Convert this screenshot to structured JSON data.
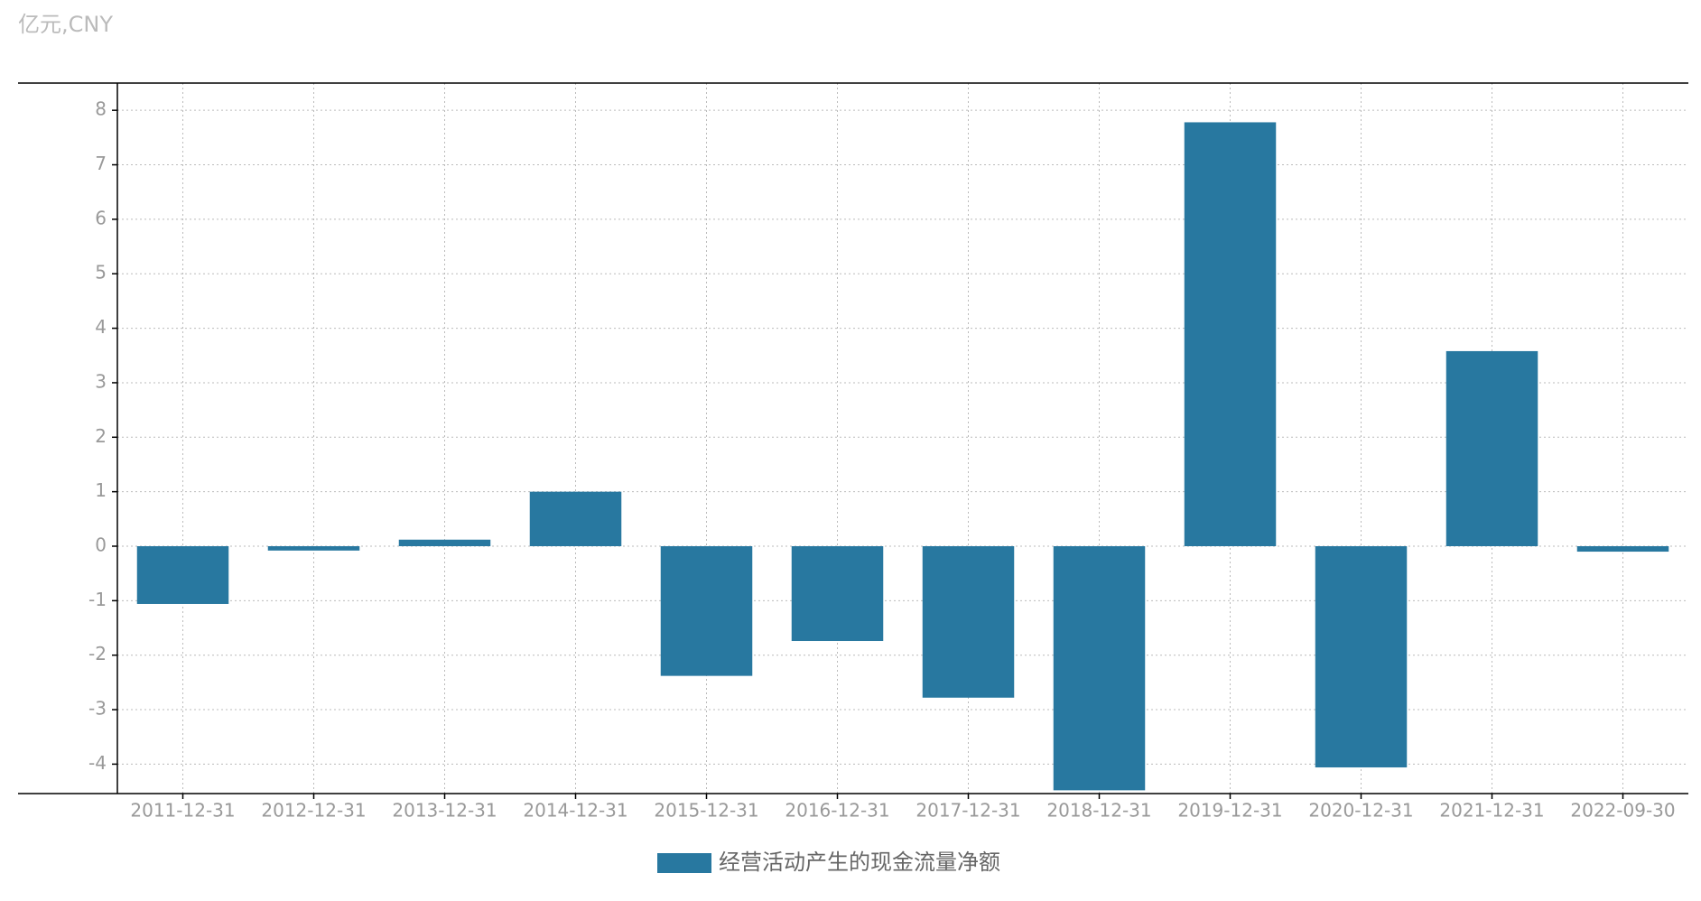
{
  "chart_data": {
    "type": "bar",
    "unit_label": "亿元,CNY",
    "categories": [
      "2011-12-31",
      "2012-12-31",
      "2013-12-31",
      "2014-12-31",
      "2015-12-31",
      "2016-12-31",
      "2017-12-31",
      "2018-12-31",
      "2019-12-31",
      "2020-12-31",
      "2021-12-31",
      "2022-09-30"
    ],
    "series": [
      {
        "name": "经营活动产生的现金流量净额",
        "color": "#2878a0",
        "values": [
          -1.06,
          -0.08,
          0.12,
          1.0,
          -2.38,
          -1.74,
          -2.78,
          -4.48,
          7.78,
          -4.06,
          3.58,
          -0.1
        ]
      }
    ],
    "ylim": [
      -4.54,
      8.5
    ],
    "yticks": [
      -4,
      -3,
      -2,
      -1,
      0,
      1,
      2,
      3,
      4,
      5,
      6,
      7,
      8
    ],
    "grid": true
  }
}
